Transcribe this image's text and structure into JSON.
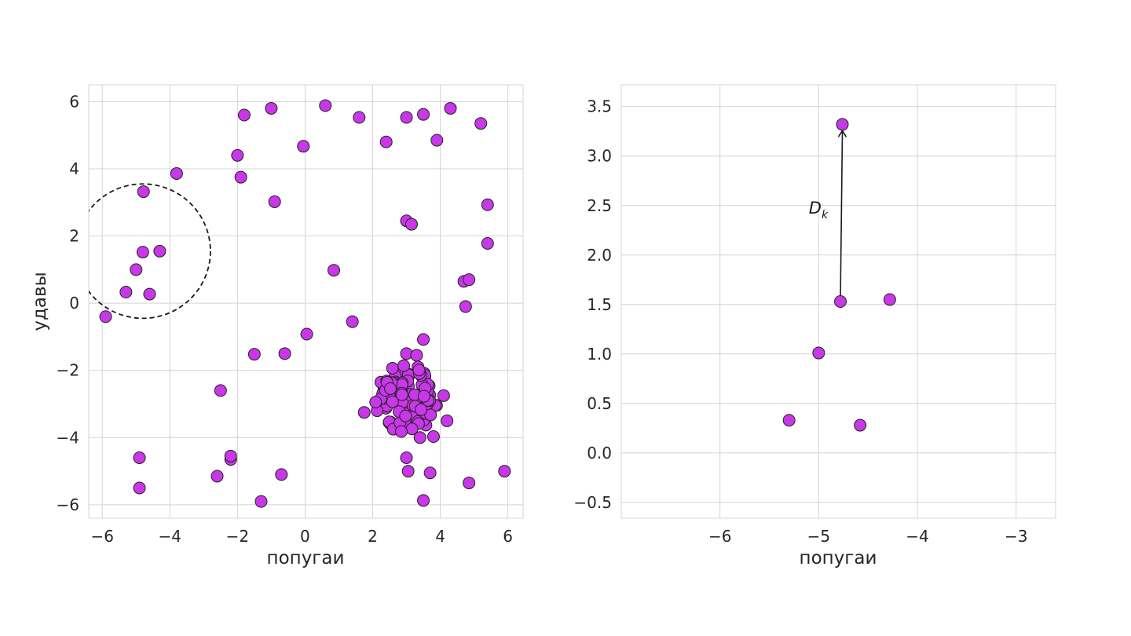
{
  "chart_data": [
    {
      "type": "scatter",
      "xlabel": "попугаи",
      "ylabel": "удавы",
      "xlim": [
        -6.4,
        6.45
      ],
      "ylim": [
        -6.4,
        6.5
      ],
      "xticks": [
        -6,
        -4,
        -2,
        0,
        2,
        4,
        6
      ],
      "yticks": [
        -6,
        -4,
        -2,
        0,
        2,
        4,
        6
      ],
      "xtick_labels": [
        "−6",
        "−4",
        "−2",
        "0",
        "2",
        "4",
        "6"
      ],
      "ytick_labels": [
        "−6",
        "−4",
        "−2",
        "0",
        "2",
        "4",
        "6"
      ],
      "grid": true,
      "marker_color": "#c837e8",
      "circle": {
        "center": [
          -4.8,
          1.55
        ],
        "radius": 2.0,
        "style": "dashed"
      },
      "points": [
        [
          -5.9,
          -0.4
        ],
        [
          -5.3,
          0.33
        ],
        [
          -5.0,
          1.0
        ],
        [
          -4.8,
          1.52
        ],
        [
          -4.6,
          0.27
        ],
        [
          -4.3,
          1.55
        ],
        [
          -4.78,
          3.32
        ],
        [
          -3.8,
          3.86
        ],
        [
          -4.9,
          -4.6
        ],
        [
          -4.9,
          -5.5
        ],
        [
          -2.6,
          -5.15
        ],
        [
          -2.5,
          -2.6
        ],
        [
          -2.2,
          -4.65
        ],
        [
          -2.2,
          -4.55
        ],
        [
          -2.0,
          4.4
        ],
        [
          -1.9,
          3.75
        ],
        [
          -1.8,
          5.6
        ],
        [
          -1.5,
          -1.52
        ],
        [
          -1.3,
          -5.9
        ],
        [
          -1.0,
          5.8
        ],
        [
          -0.9,
          3.02
        ],
        [
          -0.7,
          -5.1
        ],
        [
          -0.6,
          -1.5
        ],
        [
          -0.05,
          4.67
        ],
        [
          0.05,
          -0.92
        ],
        [
          0.6,
          5.88
        ],
        [
          0.85,
          0.98
        ],
        [
          1.4,
          -0.55
        ],
        [
          1.6,
          5.53
        ],
        [
          2.4,
          4.8
        ],
        [
          3.0,
          5.53
        ],
        [
          3.0,
          2.45
        ],
        [
          3.15,
          2.35
        ],
        [
          3.5,
          5.62
        ],
        [
          3.9,
          4.85
        ],
        [
          4.3,
          5.8
        ],
        [
          5.2,
          5.35
        ],
        [
          5.4,
          2.93
        ],
        [
          5.4,
          1.78
        ],
        [
          4.7,
          0.65
        ],
        [
          4.85,
          0.7
        ],
        [
          4.75,
          -0.1
        ],
        [
          3.5,
          -1.08
        ],
        [
          3.0,
          -4.6
        ],
        [
          3.05,
          -5.0
        ],
        [
          3.7,
          -5.05
        ],
        [
          3.5,
          -5.87
        ],
        [
          4.85,
          -5.35
        ],
        [
          5.9,
          -5.0
        ],
        [
          4.2,
          -3.5
        ],
        [
          4.1,
          -2.75
        ],
        [
          3.0,
          -1.5
        ],
        [
          3.3,
          -1.55
        ],
        [
          1.75,
          -3.25
        ],
        [
          3.8,
          -3.97
        ],
        [
          3.4,
          -4.0
        ]
      ],
      "cluster": {
        "center": [
          3.0,
          -2.85
        ],
        "count": 110,
        "spread": [
          0.55,
          0.6
        ]
      }
    },
    {
      "type": "scatter",
      "xlabel": "попугаи",
      "ylabel": "",
      "xlim": [
        -7.0,
        -2.6
      ],
      "ylim": [
        -0.66,
        3.72
      ],
      "xticks": [
        -6,
        -5,
        -4,
        -3
      ],
      "yticks": [
        -0.5,
        0.0,
        0.5,
        1.0,
        1.5,
        2.0,
        2.5,
        3.0,
        3.5
      ],
      "xtick_labels": [
        "−6",
        "−5",
        "−4",
        "−3"
      ],
      "ytick_labels": [
        "−0.5",
        "0.0",
        "0.5",
        "1.0",
        "1.5",
        "2.0",
        "2.5",
        "3.0",
        "3.5"
      ],
      "grid": true,
      "marker_color": "#c837e8",
      "points": [
        [
          -5.3,
          0.33
        ],
        [
          -5.0,
          1.01
        ],
        [
          -4.78,
          1.53
        ],
        [
          -4.58,
          0.28
        ],
        [
          -4.28,
          1.55
        ],
        [
          -4.76,
          3.32
        ]
      ],
      "annotation": {
        "label": "D",
        "subscript": "k",
        "from": [
          -4.78,
          1.53
        ],
        "to": [
          -4.76,
          3.32
        ],
        "text_at": [
          -5.1,
          2.42
        ]
      }
    }
  ]
}
